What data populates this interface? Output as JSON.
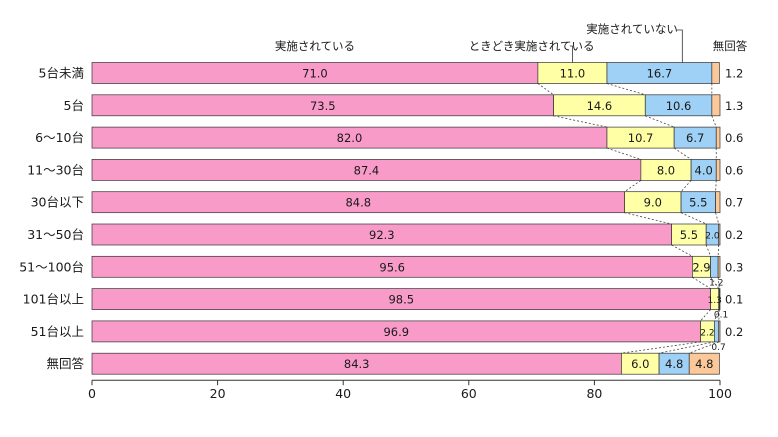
{
  "chart_data": {
    "type": "bar",
    "stacked": true,
    "orientation": "horizontal",
    "xlim": [
      0,
      100
    ],
    "xticks": [
      "0",
      "20",
      "40",
      "60",
      "80",
      "100"
    ],
    "categories": [
      "5台未満",
      "5台",
      "6～10台",
      "11～30台",
      "30台以下",
      "31～50台",
      "51～100台",
      "101台以上",
      "51台以上",
      "無回答"
    ],
    "series": [
      {
        "name": "実施されている",
        "color": "#f99bc8",
        "values": [
          71.0,
          73.5,
          82.0,
          87.4,
          84.8,
          92.3,
          95.6,
          98.5,
          96.9,
          84.3
        ],
        "labels": [
          "71.0",
          "73.5",
          "82.0",
          "87.4",
          "84.8",
          "92.3",
          "95.6",
          "98.5",
          "96.9",
          "84.3"
        ]
      },
      {
        "name": "ときどき実施されている",
        "color": "#ffffa6",
        "values": [
          11.0,
          14.6,
          10.7,
          8.0,
          9.0,
          5.5,
          2.9,
          1.3,
          2.2,
          6.0
        ],
        "labels": [
          "11.0",
          "14.6",
          "10.7",
          "8.0",
          "9.0",
          "5.5",
          "2.9",
          "1.3",
          "2.2",
          "6.0"
        ]
      },
      {
        "name": "実施されていない",
        "color": "#9fd0f5",
        "values": [
          16.7,
          10.6,
          6.7,
          4.0,
          5.5,
          2.0,
          1.2,
          0.1,
          0.7,
          4.8
        ],
        "labels": [
          "16.7",
          "10.6",
          "6.7",
          "4.0",
          "5.5",
          "2.0",
          "1.2",
          "0.1",
          "0.7",
          "4.8"
        ]
      },
      {
        "name": "無回答",
        "color": "#fbc89a",
        "values": [
          1.2,
          1.3,
          0.6,
          0.6,
          0.7,
          0.2,
          0.3,
          0.1,
          0.2,
          4.8
        ],
        "labels": [
          "1.2",
          "1.3",
          "0.6",
          "0.6",
          "0.7",
          "0.2",
          "0.3",
          "0.1",
          "0.2",
          "4.8"
        ]
      }
    ],
    "legend": [
      "実施されている",
      "ときどき実施されている",
      "実施されていない",
      "無回答"
    ],
    "title": "",
    "xlabel": "",
    "ylabel": "",
    "grid": false
  }
}
